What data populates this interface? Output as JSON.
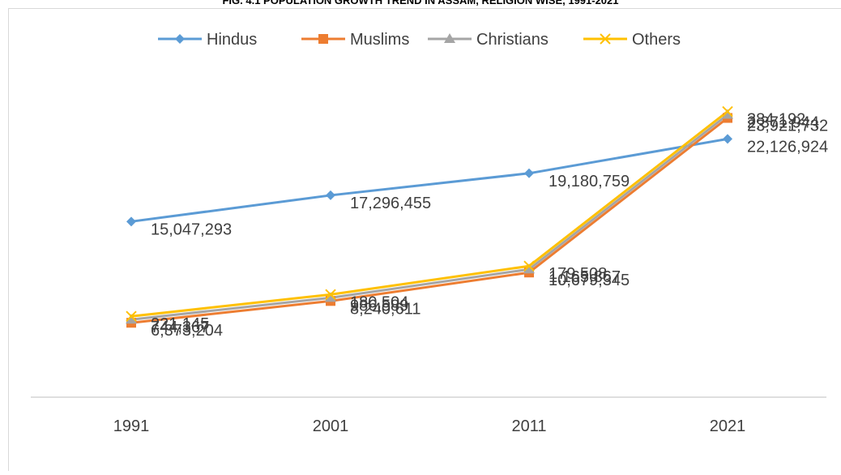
{
  "chart_data": {
    "type": "line",
    "title": "FIG. 4.1 POPULATION GROWTH TREND IN ASSAM, RELIGION WISE, 1991-2021",
    "categories": [
      "1991",
      "2001",
      "2011",
      "2021"
    ],
    "series": [
      {
        "name": "Hindus",
        "color": "#5B9BD5",
        "marker": "diamond",
        "values": [
          15047293,
          17296455,
          19180759,
          22126924
        ],
        "labels": [
          "15,047,293",
          "17,296,455",
          "19,180,759",
          "22,126,924"
        ]
      },
      {
        "name": "Muslims",
        "color": "#ED7D31",
        "marker": "square",
        "values": [
          6373204,
          8240611,
          10679345,
          23921732
        ],
        "labels": [
          "6,373,204",
          "8,240,611",
          "10,679,345",
          "23,921,732"
        ]
      },
      {
        "name": "Christians",
        "color": "#A5A5A5",
        "marker": "triangle",
        "values": [
          744367,
          986589,
          1165867,
          2371944
        ],
        "labels": [
          "744,367",
          "986,589",
          "1,165,867",
          "2,371,944"
        ]
      },
      {
        "name": "Others",
        "color": "#FFC000",
        "marker": "x",
        "values": [
          221145,
          180504,
          179508,
          384192
        ],
        "labels": [
          "221,145",
          "180,504",
          "179,508",
          "384,192"
        ]
      }
    ],
    "legend_position": "top",
    "gridlines": false
  }
}
